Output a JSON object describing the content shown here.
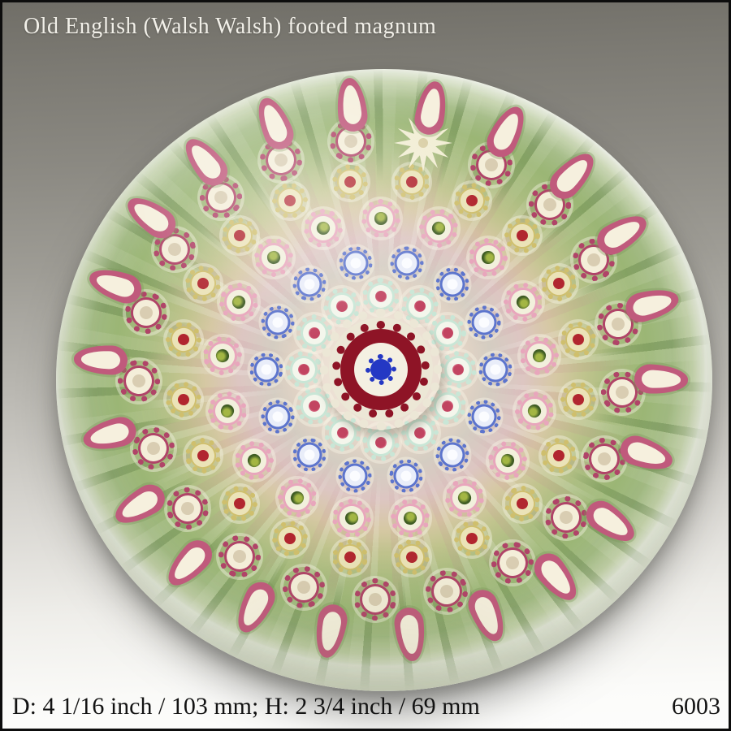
{
  "header": {
    "title": "Old English (Walsh Walsh) footed magnum"
  },
  "footer": {
    "dimensions": "D: 4 1/16 inch / 103 mm; H: 2 3/4 inch / 69 mm",
    "item_number": "6003"
  },
  "photo": {
    "subject": "millefiori concentric paperweight, top view",
    "background_top": "#706e67",
    "background_bottom": "#fdfdfc",
    "ground_green": "#9bb675",
    "glass_edge": "#e3ead6"
  },
  "paperweight": {
    "center_cane": {
      "base": "#ece7d6",
      "cog": "#8e1426",
      "ring": "#f4f0e2",
      "flower": "#2438c4"
    },
    "star_cane": {
      "color": "#f2eed4",
      "points": 12
    },
    "rings": [
      {
        "name": "mint-red",
        "type": "cog",
        "count": 12,
        "radius": 95,
        "size": 46,
        "start_deg": -90,
        "teeth": "#c9e6d6",
        "mid": "#f4f6ec",
        "dot": "#c24461",
        "dot_edge": "#e58ba0"
      },
      {
        "name": "blue-white",
        "type": "cog",
        "count": 14,
        "radius": 141,
        "size": 41,
        "start_deg": -77,
        "teeth": "#5c74cd",
        "mid": "#e9edf9",
        "dot": "#fbfcff"
      },
      {
        "name": "pink-greeneye",
        "type": "cog",
        "count": 17,
        "radius": 196,
        "size": 48,
        "start_deg": -90,
        "teeth": "#e8a6bc",
        "mid": "#f2f0dc",
        "dot": "#3f5c24",
        "dot_hi": "#a3b643"
      },
      {
        "name": "yellow-daisy",
        "type": "cog",
        "count": 20,
        "radius": 246,
        "size": 44,
        "start_deg": -81,
        "teeth": "#cfbf6d",
        "mid": "#ebe3b8",
        "dot": "#b1262f"
      },
      {
        "name": "crimson-flower",
        "type": "cog",
        "count": 21,
        "radius": 298,
        "size": 52,
        "start_deg": -80,
        "teeth": "#b04468",
        "mid": "#f4eed9",
        "dot": "#d9cdb2",
        "star_index": 0
      },
      {
        "name": "flame-rim",
        "type": "flame",
        "count": 22,
        "radius": 345,
        "width": 36,
        "height": 66,
        "start_deg": -96,
        "edge": "#c05a7c",
        "inner": "#f6f0de"
      }
    ]
  }
}
